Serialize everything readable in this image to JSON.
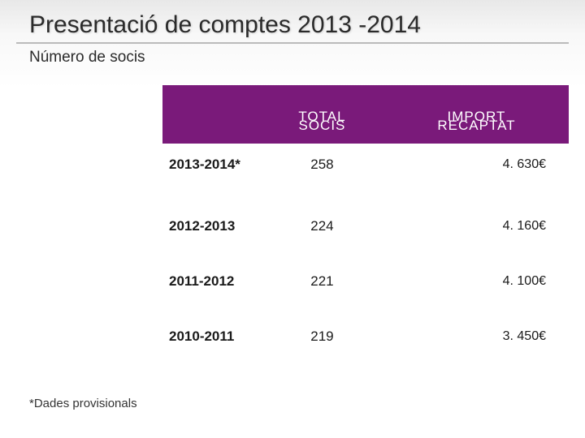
{
  "title": "Presentació de comptes 2013 -2014",
  "subtitle": "Número de socis",
  "table": {
    "headers": {
      "socis_line1": "TOTAL",
      "socis_line2": "SOCIS",
      "import_line1": "IMPORT",
      "import_line2": "RECAPTAT"
    },
    "rows": [
      {
        "year": "2013-2014*",
        "socis": "258",
        "import": "4. 630€"
      },
      {
        "year": "2012-2013",
        "socis": "224",
        "import": "4. 160€"
      },
      {
        "year": "2011-2012",
        "socis": "221",
        "import": "4. 100€"
      },
      {
        "year": "2010-2011",
        "socis": "219",
        "import": "3. 450€"
      }
    ]
  },
  "footnote": "*Dades provisionals",
  "colors": {
    "header_bg": "#7a1a7a",
    "header_text": "#ffffff",
    "text": "#1a1a1a"
  }
}
